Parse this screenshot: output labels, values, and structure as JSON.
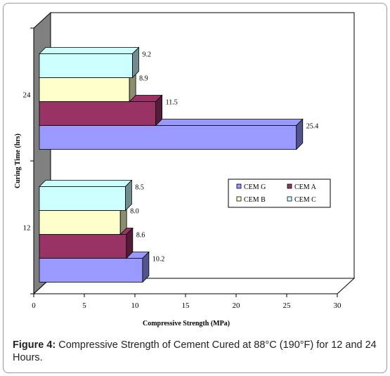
{
  "chart_data": {
    "type": "bar",
    "orientation": "horizontal",
    "style": "3d",
    "categories": [
      "12",
      "24"
    ],
    "series": [
      {
        "name": "CEM G",
        "color": "#9999ff",
        "values": [
          10.2,
          25.4
        ]
      },
      {
        "name": "CEM A",
        "color": "#993366",
        "values": [
          8.6,
          11.5
        ]
      },
      {
        "name": "CEM B",
        "color": "#ffffcc",
        "values": [
          8.0,
          8.9
        ]
      },
      {
        "name": "CEM C",
        "color": "#ccffff",
        "values": [
          8.5,
          9.2
        ]
      }
    ],
    "value_labels": {
      "12": [
        "10.2",
        "8.6",
        "8.0",
        "8.5"
      ],
      "24": [
        "25.4",
        "11.5",
        "8.9",
        "9.2"
      ]
    },
    "xlabel": "Compressive Strength (MPa)",
    "ylabel": "Curing Time (hrs)",
    "xlim": [
      0,
      30
    ],
    "xticks": [
      "0",
      "5",
      "10",
      "15",
      "20",
      "25",
      "30"
    ],
    "grid": false,
    "legend": "right"
  },
  "caption": {
    "label": "Figure 4:",
    "text": "Compressive Strength of Cement Cured at 88°C (190°F) for 12 and 24 Hours."
  }
}
